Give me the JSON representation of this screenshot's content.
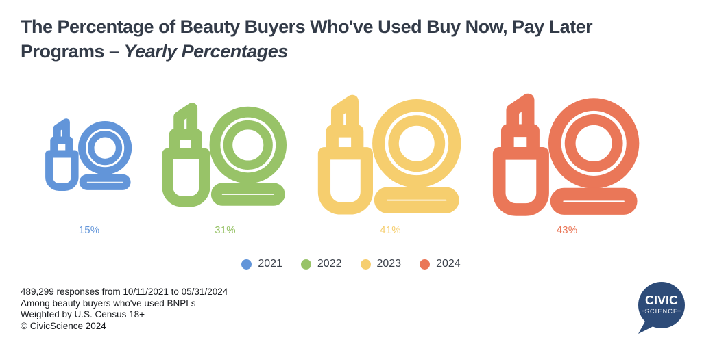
{
  "title": {
    "line1": "The Percentage of Beauty Buyers Who've Used Buy Now, Pay Later",
    "line2_regular": "Programs – ",
    "line2_italic": "Yearly Percentages"
  },
  "chart_data": {
    "type": "bar",
    "style": "pictogram — lipstick & compact-mirror icons scaled by value",
    "title": "The Percentage of Beauty Buyers Who've Used Buy Now, Pay Later Programs – Yearly Percentages",
    "categories": [
      "2021",
      "2022",
      "2023",
      "2024"
    ],
    "values": [
      15,
      31,
      41,
      43
    ],
    "labels": [
      "15%",
      "31%",
      "41%",
      "43%"
    ],
    "unit": "%",
    "colors": [
      "#6295d9",
      "#98c368",
      "#f6ce6e",
      "#ea7758"
    ],
    "legend_position": "bottom-center",
    "icon": "lipstick-and-compact-mirror"
  },
  "footer": {
    "lines": [
      "489,299 responses from 10/11/2021 to 05/31/2024",
      "Among beauty buyers who've used BNPLs",
      "Weighted by U.S. Census 18+",
      "© CivicScience 2024"
    ]
  },
  "logo": {
    "line1": "CIVIC",
    "line2": "SCIENCE",
    "color": "#2d4b78"
  }
}
